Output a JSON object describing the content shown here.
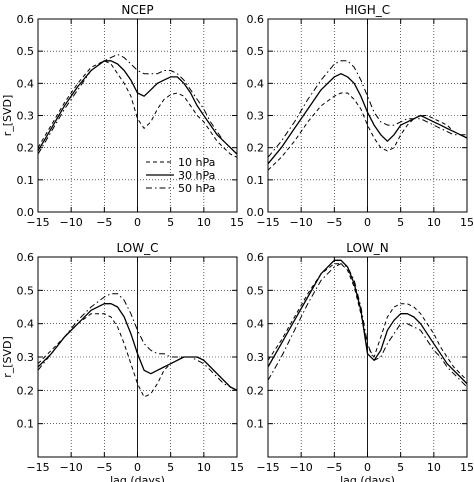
{
  "chart_data": [
    {
      "type": "line",
      "title": "NCEP",
      "xlabel": "",
      "ylabel": "r_[SVD]",
      "xlim": [
        -15,
        15
      ],
      "ylim": [
        0,
        0.6
      ],
      "xticks": [
        -15,
        -10,
        -5,
        0,
        5,
        10,
        15
      ],
      "yticks": [
        0.0,
        0.1,
        0.2,
        0.3,
        0.4,
        0.5,
        0.6
      ],
      "grid": true,
      "legend": {
        "placement": "lower-right"
      },
      "x": [
        -15,
        -13,
        -11,
        -9,
        -7,
        -5,
        -4,
        -3,
        -2,
        -1,
        0,
        1,
        2,
        3,
        4,
        5,
        6,
        7,
        8,
        9,
        10,
        11,
        12,
        13,
        14,
        15
      ],
      "series": [
        {
          "name": "10 hPa",
          "style": "dashed",
          "values": [
            0.2,
            0.27,
            0.34,
            0.4,
            0.45,
            0.47,
            0.46,
            0.43,
            0.4,
            0.36,
            0.29,
            0.26,
            0.28,
            0.32,
            0.35,
            0.365,
            0.37,
            0.36,
            0.33,
            0.3,
            0.28,
            0.25,
            0.22,
            0.2,
            0.18,
            0.17
          ]
        },
        {
          "name": "30 hPa",
          "style": "solid",
          "values": [
            0.19,
            0.26,
            0.33,
            0.39,
            0.44,
            0.47,
            0.47,
            0.46,
            0.44,
            0.41,
            0.37,
            0.36,
            0.38,
            0.4,
            0.41,
            0.42,
            0.42,
            0.4,
            0.37,
            0.33,
            0.3,
            0.27,
            0.24,
            0.22,
            0.2,
            0.18
          ]
        },
        {
          "name": "50 hPa",
          "style": "dashdot",
          "values": [
            0.18,
            0.25,
            0.32,
            0.38,
            0.44,
            0.47,
            0.48,
            0.49,
            0.48,
            0.46,
            0.44,
            0.43,
            0.43,
            0.43,
            0.44,
            0.44,
            0.43,
            0.41,
            0.38,
            0.35,
            0.32,
            0.28,
            0.25,
            0.22,
            0.2,
            0.18
          ]
        }
      ]
    },
    {
      "type": "line",
      "title": "HIGH_C",
      "xlabel": "",
      "ylabel": "",
      "xlim": [
        -15,
        15
      ],
      "ylim": [
        0,
        0.6
      ],
      "xticks": [
        -15,
        -10,
        -5,
        0,
        5,
        10,
        15
      ],
      "yticks": [
        0.0,
        0.1,
        0.2,
        0.3,
        0.4,
        0.5,
        0.6
      ],
      "grid": true,
      "x": [
        -15,
        -13,
        -11,
        -9,
        -7,
        -5,
        -4,
        -3,
        -2,
        -1,
        0,
        1,
        2,
        3,
        4,
        5,
        6,
        7,
        8,
        9,
        10,
        11,
        12,
        13,
        14,
        15
      ],
      "series": [
        {
          "name": "10 hPa",
          "style": "dashed",
          "values": [
            0.13,
            0.17,
            0.22,
            0.28,
            0.33,
            0.36,
            0.37,
            0.37,
            0.35,
            0.32,
            0.27,
            0.23,
            0.2,
            0.19,
            0.2,
            0.24,
            0.27,
            0.29,
            0.3,
            0.3,
            0.29,
            0.28,
            0.27,
            0.25,
            0.24,
            0.23
          ]
        },
        {
          "name": "30 hPa",
          "style": "solid",
          "values": [
            0.15,
            0.2,
            0.26,
            0.32,
            0.38,
            0.42,
            0.43,
            0.42,
            0.4,
            0.36,
            0.31,
            0.27,
            0.24,
            0.22,
            0.24,
            0.27,
            0.28,
            0.29,
            0.3,
            0.29,
            0.28,
            0.27,
            0.26,
            0.25,
            0.24,
            0.23
          ]
        },
        {
          "name": "50 hPa",
          "style": "dashdot",
          "values": [
            0.17,
            0.22,
            0.28,
            0.35,
            0.41,
            0.46,
            0.47,
            0.47,
            0.45,
            0.41,
            0.36,
            0.31,
            0.28,
            0.27,
            0.27,
            0.28,
            0.29,
            0.29,
            0.29,
            0.28,
            0.27,
            0.26,
            0.25,
            0.24,
            0.24,
            0.24
          ]
        }
      ]
    },
    {
      "type": "line",
      "title": "LOW_C",
      "xlabel": "laq (days)",
      "ylabel": "r_[SVD]",
      "xlim": [
        -15,
        15
      ],
      "ylim": [
        0,
        0.6
      ],
      "xticks": [
        -15,
        -10,
        -5,
        0,
        5,
        10,
        15
      ],
      "yticks": [
        0.1,
        0.2,
        0.3,
        0.4,
        0.5,
        0.6
      ],
      "grid": true,
      "x": [
        -15,
        -13,
        -11,
        -9,
        -7,
        -5,
        -4,
        -3,
        -2,
        -1,
        0,
        1,
        2,
        3,
        4,
        5,
        6,
        7,
        8,
        9,
        10,
        11,
        12,
        13,
        14,
        15
      ],
      "series": [
        {
          "name": "10 hPa",
          "style": "dashed",
          "values": [
            0.28,
            0.32,
            0.36,
            0.4,
            0.43,
            0.43,
            0.42,
            0.39,
            0.34,
            0.28,
            0.22,
            0.18,
            0.19,
            0.22,
            0.26,
            0.28,
            0.29,
            0.3,
            0.3,
            0.3,
            0.29,
            0.27,
            0.25,
            0.23,
            0.21,
            0.2
          ]
        },
        {
          "name": "30 hPa",
          "style": "solid",
          "values": [
            0.27,
            0.31,
            0.36,
            0.4,
            0.44,
            0.46,
            0.46,
            0.45,
            0.42,
            0.37,
            0.31,
            0.26,
            0.25,
            0.26,
            0.27,
            0.28,
            0.29,
            0.3,
            0.3,
            0.3,
            0.29,
            0.27,
            0.25,
            0.23,
            0.21,
            0.2
          ]
        },
        {
          "name": "50 hPa",
          "style": "dashdot",
          "values": [
            0.26,
            0.31,
            0.36,
            0.41,
            0.45,
            0.48,
            0.49,
            0.49,
            0.47,
            0.43,
            0.38,
            0.34,
            0.32,
            0.31,
            0.31,
            0.3,
            0.3,
            0.3,
            0.3,
            0.29,
            0.28,
            0.26,
            0.24,
            0.22,
            0.21,
            0.2
          ]
        }
      ]
    },
    {
      "type": "line",
      "title": "LOW_N",
      "xlabel": "laq (days)",
      "ylabel": "",
      "xlim": [
        -15,
        15
      ],
      "ylim": [
        0,
        0.6
      ],
      "xticks": [
        -15,
        -10,
        -5,
        0,
        5,
        10,
        15
      ],
      "yticks": [
        0.1,
        0.2,
        0.3,
        0.4,
        0.5,
        0.6
      ],
      "grid": true,
      "x": [
        -15,
        -13,
        -11,
        -9,
        -7,
        -5,
        -4,
        -3,
        -2,
        -1,
        0,
        1,
        2,
        3,
        4,
        5,
        6,
        7,
        8,
        9,
        10,
        11,
        12,
        13,
        14,
        15
      ],
      "series": [
        {
          "name": "10 hPa",
          "style": "dashed",
          "values": [
            0.29,
            0.35,
            0.42,
            0.49,
            0.55,
            0.58,
            0.58,
            0.56,
            0.51,
            0.43,
            0.33,
            0.3,
            0.36,
            0.42,
            0.45,
            0.46,
            0.46,
            0.45,
            0.43,
            0.4,
            0.37,
            0.33,
            0.3,
            0.27,
            0.25,
            0.23
          ]
        },
        {
          "name": "30 hPa",
          "style": "solid",
          "values": [
            0.27,
            0.34,
            0.41,
            0.48,
            0.55,
            0.59,
            0.59,
            0.57,
            0.52,
            0.44,
            0.31,
            0.29,
            0.32,
            0.38,
            0.41,
            0.43,
            0.43,
            0.42,
            0.4,
            0.37,
            0.34,
            0.31,
            0.28,
            0.26,
            0.24,
            0.22
          ]
        },
        {
          "name": "50 hPa",
          "style": "dashdot",
          "values": [
            0.23,
            0.3,
            0.38,
            0.46,
            0.53,
            0.57,
            0.58,
            0.57,
            0.53,
            0.45,
            0.34,
            0.29,
            0.3,
            0.34,
            0.37,
            0.4,
            0.4,
            0.39,
            0.38,
            0.35,
            0.32,
            0.3,
            0.27,
            0.25,
            0.23,
            0.21
          ]
        }
      ]
    }
  ]
}
